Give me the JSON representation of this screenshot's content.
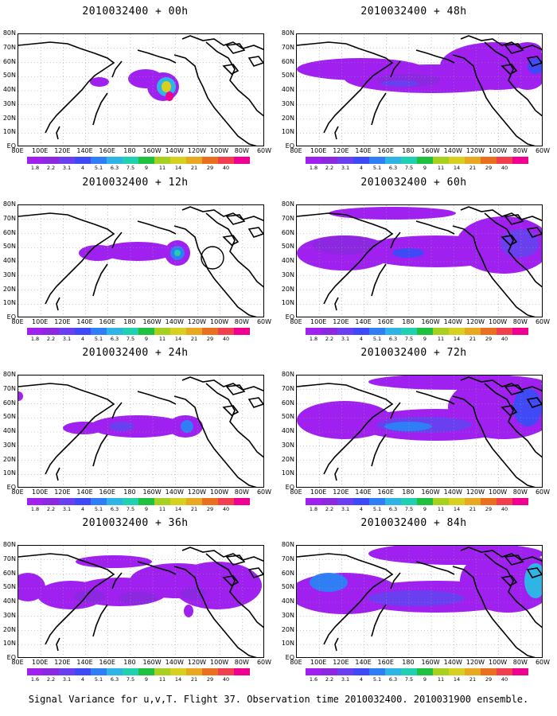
{
  "base_time": "2010032400",
  "panels": [
    {
      "title": "2010032400 + 00h",
      "lead": "00h",
      "coverage": "small plume over eastern Pacific / western North America"
    },
    {
      "title": "2010032400 + 12h",
      "lead": "12h",
      "coverage": "band across central Pacific to Rockies"
    },
    {
      "title": "2010032400 + 24h",
      "lead": "24h",
      "coverage": "band from Japan to western North America"
    },
    {
      "title": "2010032400 + 36h",
      "lead": "36h",
      "coverage": "broad band 20N-70N across Pacific"
    },
    {
      "title": "2010032400 + 48h",
      "lead": "48h",
      "coverage": "broad band across entire domain"
    },
    {
      "title": "2010032400 + 60h",
      "lead": "60h",
      "coverage": "broad band across entire domain"
    },
    {
      "title": "2010032400 + 72h",
      "lead": "72h",
      "coverage": "broad band across entire domain"
    },
    {
      "title": "2010032400 + 84h",
      "lead": "84h",
      "coverage": "broad band across entire domain"
    }
  ],
  "axes": {
    "lat_labels": [
      "80N",
      "70N",
      "60N",
      "50N",
      "40N",
      "30N",
      "20N",
      "10N",
      "EQ"
    ],
    "lon_labels": [
      "80E",
      "100E",
      "120E",
      "140E",
      "160E",
      "180",
      "160W",
      "140W",
      "120W",
      "100W",
      "80W",
      "60W"
    ]
  },
  "colorbar": {
    "levels": [
      "1.8",
      "2.2",
      "3.1",
      "4",
      "5.1",
      "6.3",
      "7.5",
      "9",
      "11",
      "14",
      "21",
      "29",
      "40"
    ],
    "levels_last_row_left": "1.6",
    "colors": [
      "#a020f0",
      "#8c28e0",
      "#6a3ff0",
      "#3f49f5",
      "#2f7ef5",
      "#2fb4e6",
      "#20d0b0",
      "#20c040",
      "#a8d020",
      "#d8d020",
      "#e8a820",
      "#e87020",
      "#f04050",
      "#f00090"
    ]
  },
  "footer": "Signal Variance for u,v,T. Flight 37. Observation time 2010032400. 2010031900 ensemble."
}
